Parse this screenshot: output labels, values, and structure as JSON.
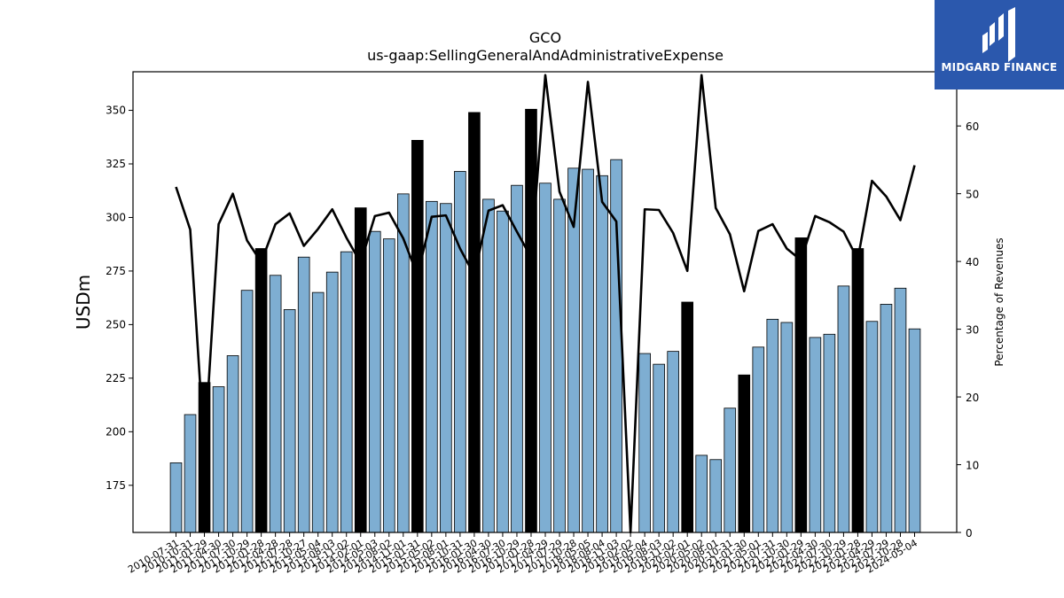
{
  "chart_data": {
    "type": "bar",
    "title": "GCO",
    "subtitle": "us-gaap:SellingGeneralAndAdministrativeExpense",
    "ylabel": "USDm",
    "ylabel_right": "Percentage of Revenues",
    "ylim": [
      153,
      368
    ],
    "ylim_right": [
      0,
      68
    ],
    "yticks": [
      175,
      200,
      225,
      250,
      275,
      300,
      325,
      350
    ],
    "yticks_right": [
      0,
      10,
      20,
      30,
      40,
      50,
      60
    ],
    "categories": [
      "2010-07-31",
      "2010-10-31",
      "2011-01-29",
      "2011-04-30",
      "2011-07-30",
      "2011-10-29",
      "2012-01-28",
      "2012-04-28",
      "2012-07-28",
      "2012-10-27",
      "2013-05-04",
      "2013-08-03",
      "2013-11-02",
      "2014-02-01",
      "2014-05-03",
      "2014-08-02",
      "2014-11-01",
      "2015-01-31",
      "2015-05-02",
      "2015-08-01",
      "2015-10-31",
      "2016-01-30",
      "2016-04-30",
      "2016-07-30",
      "2016-10-29",
      "2017-01-28",
      "2017-04-29",
      "2017-07-29",
      "2017-10-28",
      "2018-05-05",
      "2018-08-04",
      "2018-11-03",
      "2019-02-02",
      "2019-05-04",
      "2019-08-03",
      "2019-11-02",
      "2020-02-01",
      "2020-05-02",
      "2020-08-01",
      "2020-10-31",
      "2021-01-30",
      "2021-05-01",
      "2021-07-31",
      "2021-10-30",
      "2022-01-29",
      "2022-04-30",
      "2022-07-30",
      "2022-10-29",
      "2023-01-28",
      "2023-04-29",
      "2023-07-29",
      "2023-10-28",
      "2024-05-04"
    ],
    "values": [
      185.5,
      208,
      223,
      221,
      235.5,
      266,
      285.5,
      273,
      257,
      281.5,
      265,
      274.5,
      284,
      304.5,
      293.5,
      290,
      311,
      336,
      307.5,
      306.5,
      321.5,
      349,
      308.5,
      303,
      315,
      350.5,
      316,
      308.5,
      323,
      322.5,
      319.5,
      327,
      null,
      236.5,
      231.5,
      237.5,
      260.5,
      189,
      187,
      211,
      226.5,
      239.5,
      252.5,
      251,
      290.5,
      244,
      245.5,
      268,
      285.5,
      251.5,
      259.5,
      267,
      248
    ],
    "highlight": [
      false,
      false,
      true,
      false,
      false,
      false,
      true,
      false,
      false,
      false,
      false,
      false,
      false,
      true,
      false,
      false,
      false,
      true,
      false,
      false,
      false,
      true,
      false,
      false,
      false,
      true,
      false,
      false,
      false,
      false,
      false,
      false,
      false,
      false,
      false,
      false,
      true,
      false,
      false,
      false,
      true,
      false,
      false,
      false,
      true,
      false,
      false,
      false,
      true,
      false,
      false,
      false,
      false
    ],
    "series_line": [
      51,
      44.7,
      12,
      45.5,
      50,
      43.1,
      39.9,
      45.5,
      47.1,
      42.3,
      44.8,
      47.7,
      43.5,
      39.8,
      46.7,
      47.2,
      43.4,
      38,
      46.6,
      46.8,
      41.9,
      38,
      47.5,
      48.3,
      44.4,
      40.6,
      67.5,
      50.3,
      45.1,
      66.5,
      48.8,
      45.9,
      0,
      47.7,
      47.6,
      44.2,
      38.6,
      67.5,
      47.9,
      44,
      35.6,
      44.5,
      45.5,
      41.9,
      40.2,
      46.7,
      45.8,
      44.4,
      40.3,
      51.9,
      49.6,
      46.1,
      54.2
    ],
    "colors": {
      "bar": "#7eaed2",
      "bar_highlight": "#000000",
      "line": "#000000"
    },
    "grid": false
  },
  "logo": {
    "text": "MIDGARD FINANCE",
    "background": "#2b58ad"
  }
}
